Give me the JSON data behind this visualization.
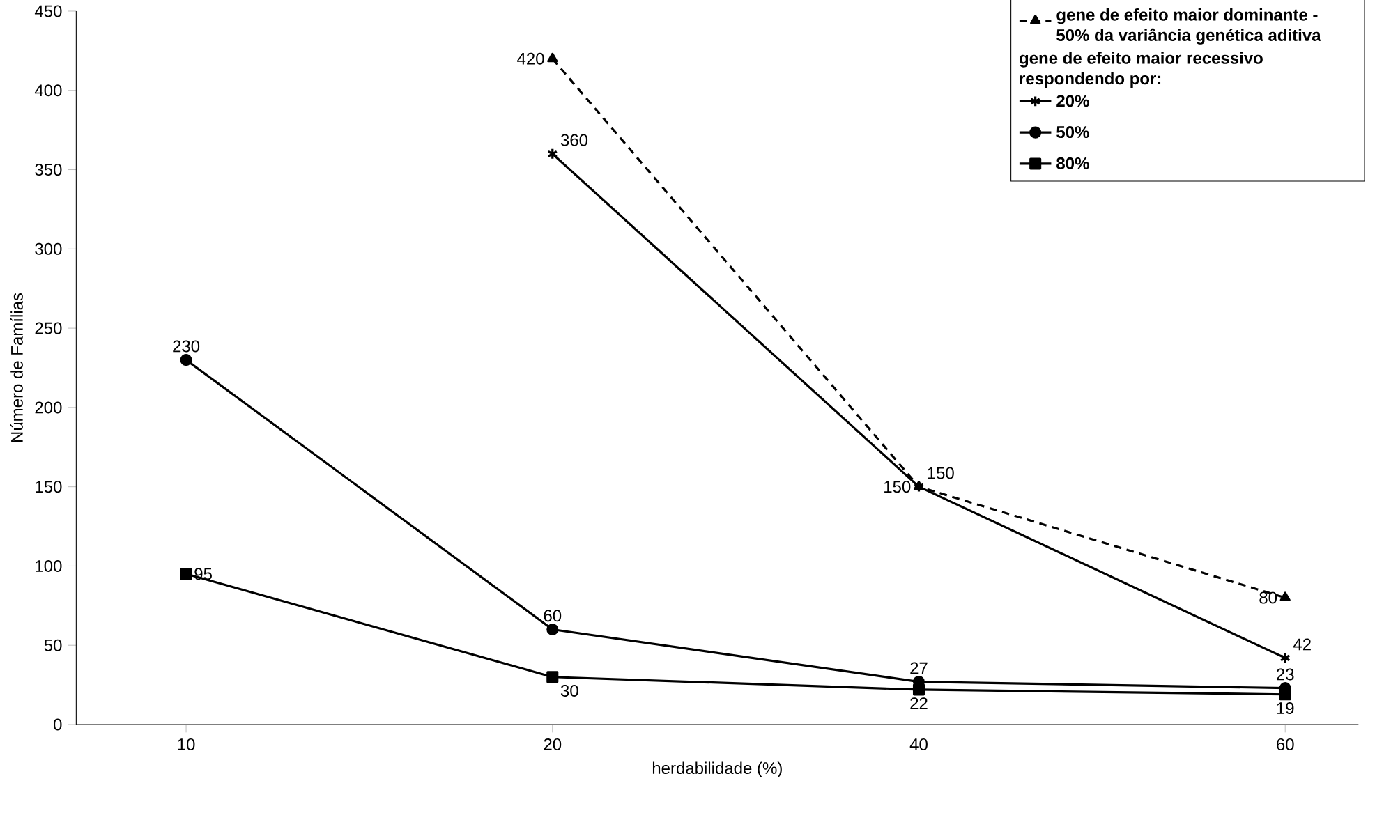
{
  "chart_data": {
    "type": "line",
    "xlabel": "herdabilidade (%)",
    "ylabel": "Número de Famílias",
    "categories": [
      "10",
      "20",
      "40",
      "60"
    ],
    "ylim": [
      0,
      450
    ],
    "yticks": [
      0,
      50,
      100,
      150,
      200,
      250,
      300,
      350,
      400,
      450
    ],
    "legend": "top right",
    "legend_title": "gene de efeito maior recessivo respondendo por:",
    "data_labels": true,
    "grid": false,
    "series": [
      {
        "name": "gene de efeito maior dominante - 50% da variância genética aditiva",
        "color": "#000000",
        "values": [
          null,
          420,
          150,
          80
        ],
        "marker": "triangle",
        "line_style": "dashed"
      },
      {
        "name": "20%",
        "color": "#000000",
        "values": [
          null,
          360,
          150,
          42
        ],
        "marker": "cross",
        "line_style": "solid"
      },
      {
        "name": "50%",
        "color": "#000000",
        "values": [
          230,
          60,
          27,
          23
        ],
        "marker": "circle",
        "line_style": "solid"
      },
      {
        "name": "80%",
        "color": "#000000",
        "values": [
          95,
          30,
          22,
          19
        ],
        "marker": "square",
        "line_style": "solid"
      }
    ]
  }
}
